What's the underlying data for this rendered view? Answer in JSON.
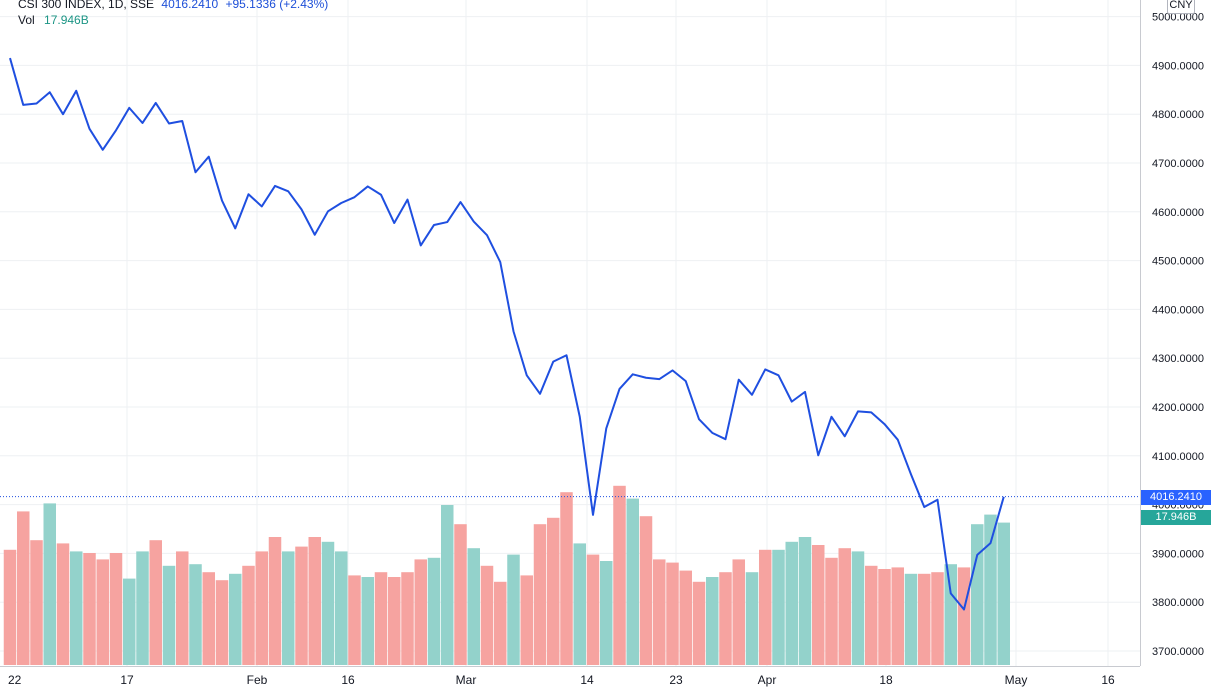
{
  "header": {
    "symbol": "CSI 300 INDEX, 1D, SSE",
    "last": "4016.2410",
    "change": "+95.1336 (+2.43%)",
    "vol_label": "Vol",
    "vol_value": "17.946B"
  },
  "currency": "CNY",
  "colors": {
    "line": "#1f4fe0",
    "vol_up": "#93d2cb",
    "vol_down": "#f6a3a0",
    "grid": "#eef0f3",
    "axis_border": "#c8cad0",
    "price_tag": "#2962ff",
    "vol_tag": "#26a69a"
  },
  "chart_data": {
    "type": "line",
    "title": "CSI 300 INDEX, 1D, SSE",
    "price_axis": {
      "min": 3680,
      "max": 5030,
      "ticks": [
        3700,
        3800,
        3900,
        4000,
        4100,
        4200,
        4300,
        4400,
        4500,
        4600,
        4700,
        4800,
        4900,
        5000
      ],
      "tick_labels": [
        "3700.0000",
        "3800.0000",
        "3900.0000",
        "4000.0000",
        "4100.0000",
        "4200.0000",
        "4300.0000",
        "4400.0000",
        "4500.0000",
        "4600.0000",
        "4700.0000",
        "4800.0000",
        "4900.0000",
        "5000.0000"
      ]
    },
    "time_axis_labels": [
      "22",
      "17",
      "Feb",
      "16",
      "Mar",
      "14",
      "23",
      "Apr",
      "18",
      "May",
      "16"
    ],
    "grid": true,
    "current_price": 4016.241,
    "current_price_label": "4016.2410",
    "current_volume_label": "17.946B",
    "series": [
      {
        "name": "CSI 300 INDEX",
        "values": [
          4915,
          4819,
          4822,
          4845,
          4800,
          4848,
          4770,
          4727,
          4767,
          4813,
          4782,
          4823,
          4781,
          4786,
          4681,
          4713,
          4623,
          4566,
          4636,
          4611,
          4653,
          4642,
          4605,
          4553,
          4601,
          4618,
          4630,
          4652,
          4635,
          4577,
          4625,
          4531,
          4573,
          4579,
          4620,
          4580,
          4552,
          4497,
          4355,
          4265,
          4227,
          4293,
          4306,
          4180,
          3979,
          4156,
          4237,
          4267,
          4260,
          4257,
          4275,
          4253,
          4175,
          4147,
          4134,
          4256,
          4225,
          4277,
          4265,
          4211,
          4231,
          4101,
          4180,
          4140,
          4191,
          4189,
          4165,
          4133,
          4062,
          3995,
          4010,
          3818,
          3785,
          3897,
          3921,
          4016
        ]
      }
    ],
    "volume": {
      "values": [
        0.72,
        0.96,
        0.78,
        1.01,
        0.76,
        0.71,
        0.7,
        0.66,
        0.7,
        0.54,
        0.71,
        0.78,
        0.62,
        0.71,
        0.63,
        0.58,
        0.53,
        0.57,
        0.62,
        0.71,
        0.8,
        0.71,
        0.74,
        0.8,
        0.77,
        0.71,
        0.56,
        0.55,
        0.58,
        0.55,
        0.58,
        0.66,
        0.67,
        1.0,
        0.88,
        0.73,
        0.62,
        0.52,
        0.69,
        0.56,
        0.88,
        0.92,
        1.08,
        0.76,
        0.69,
        0.65,
        1.12,
        1.04,
        0.93,
        0.66,
        0.64,
        0.59,
        0.52,
        0.55,
        0.58,
        0.66,
        0.58,
        0.72,
        0.72,
        0.77,
        0.8,
        0.75,
        0.67,
        0.73,
        0.71,
        0.62,
        0.6,
        0.61,
        0.57,
        0.57,
        0.58,
        0.63,
        0.61,
        0.88,
        0.94,
        0.89
      ],
      "up": [
        false,
        false,
        false,
        true,
        false,
        true,
        false,
        false,
        false,
        true,
        true,
        false,
        true,
        false,
        true,
        false,
        false,
        true,
        false,
        false,
        false,
        true,
        false,
        false,
        true,
        true,
        false,
        true,
        false,
        false,
        false,
        false,
        true,
        true,
        false,
        true,
        false,
        false,
        true,
        false,
        false,
        false,
        false,
        true,
        false,
        true,
        false,
        true,
        false,
        false,
        false,
        false,
        false,
        true,
        false,
        false,
        true,
        false,
        true,
        true,
        true,
        false,
        false,
        false,
        true,
        false,
        false,
        false,
        true,
        false,
        false,
        true,
        false,
        true,
        true,
        true
      ]
    }
  }
}
